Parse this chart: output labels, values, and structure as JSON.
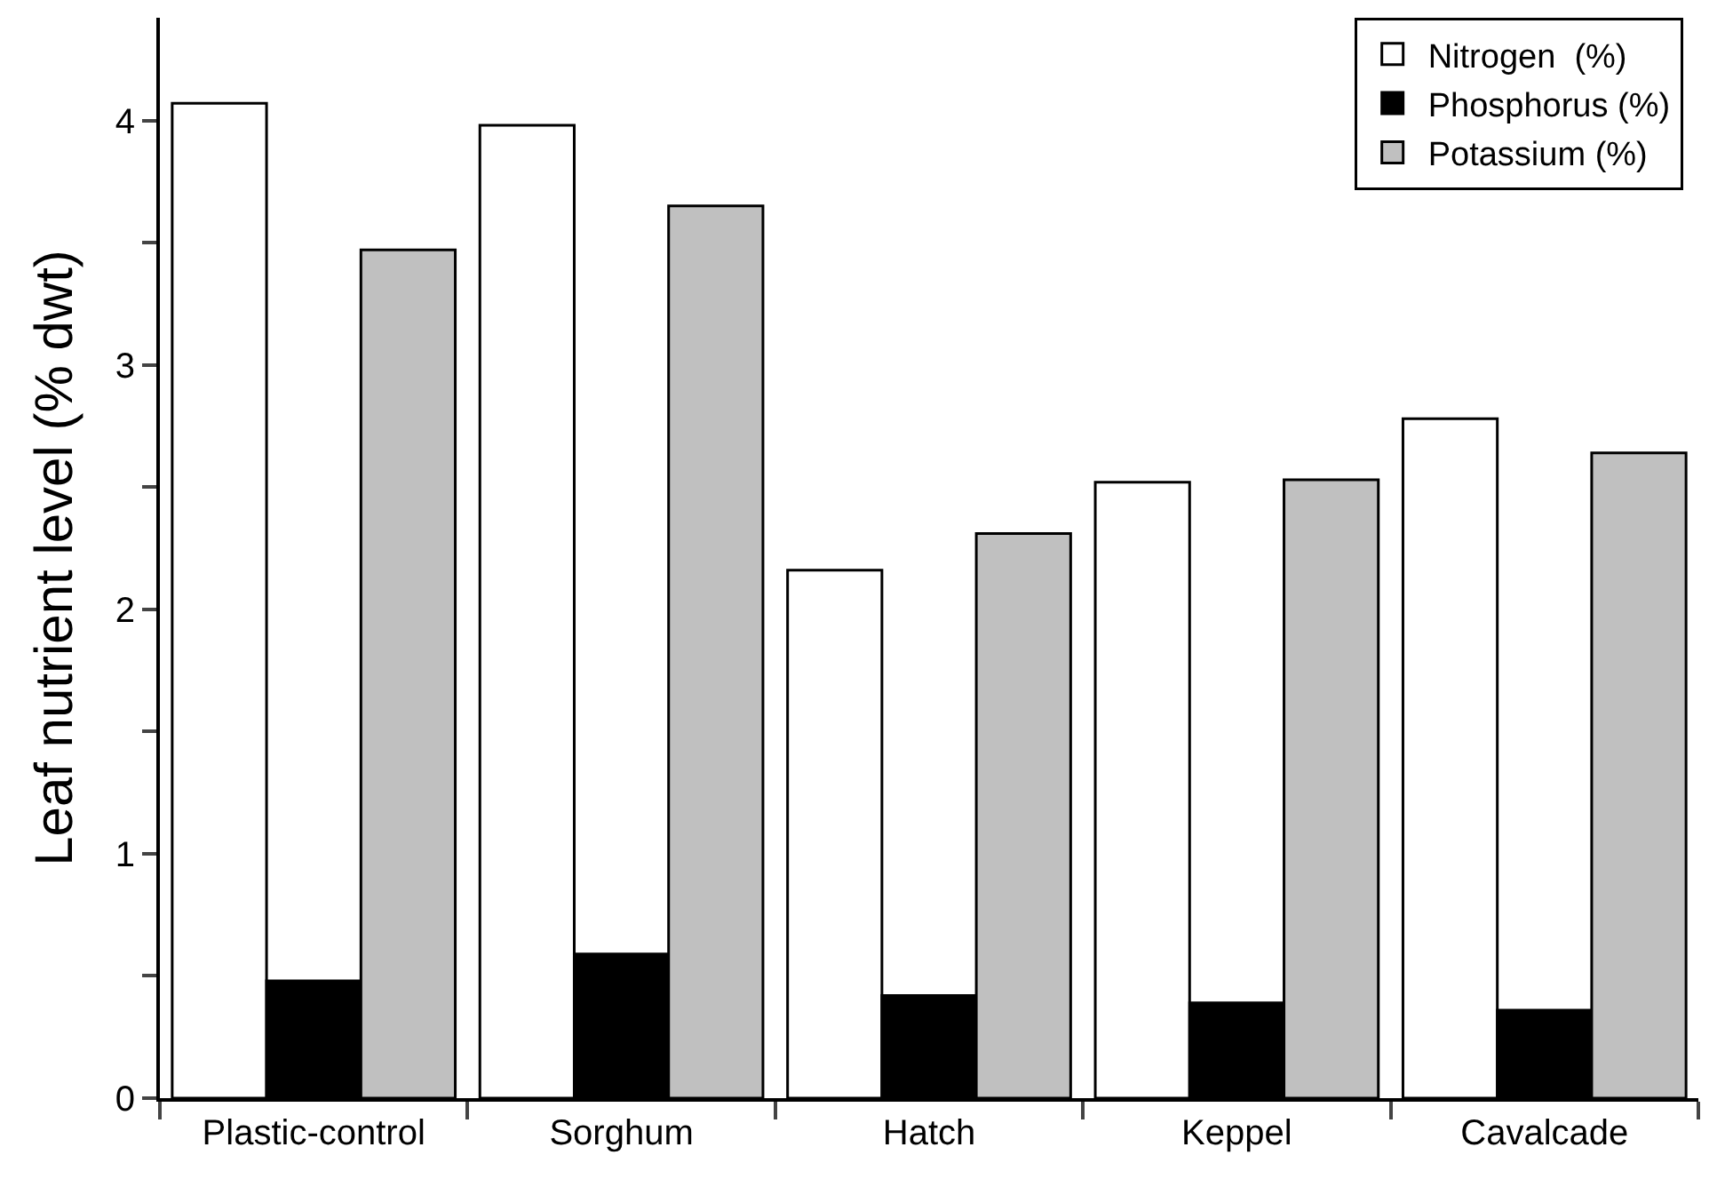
{
  "chart_data": {
    "type": "bar",
    "ylabel": "Leaf nutrient level (% dwt)",
    "categories": [
      "Plastic-control",
      "Sorghum",
      "Hatch",
      "Keppel",
      "Cavalcade"
    ],
    "series": [
      {
        "name": "Nitrogen  (%)",
        "color": "#ffffff",
        "values": [
          4.07,
          3.98,
          2.16,
          2.52,
          2.78
        ]
      },
      {
        "name": "Phosphorus (%)",
        "color": "#000000",
        "values": [
          0.48,
          0.59,
          0.42,
          0.39,
          0.36
        ]
      },
      {
        "name": "Potassium (%)",
        "color": "#c0c0c0",
        "values": [
          3.47,
          3.65,
          2.31,
          2.53,
          2.64
        ]
      }
    ],
    "ylim": [
      0,
      4.42
    ],
    "yticks": [
      0,
      {
        "value": 0.5,
        "label": null
      },
      1,
      {
        "value": 1.5,
        "label": null
      },
      2,
      {
        "value": 2.5,
        "label": null
      },
      3,
      {
        "value": 3.5,
        "label": null
      },
      4
    ],
    "grid": false,
    "legend": "top right"
  }
}
